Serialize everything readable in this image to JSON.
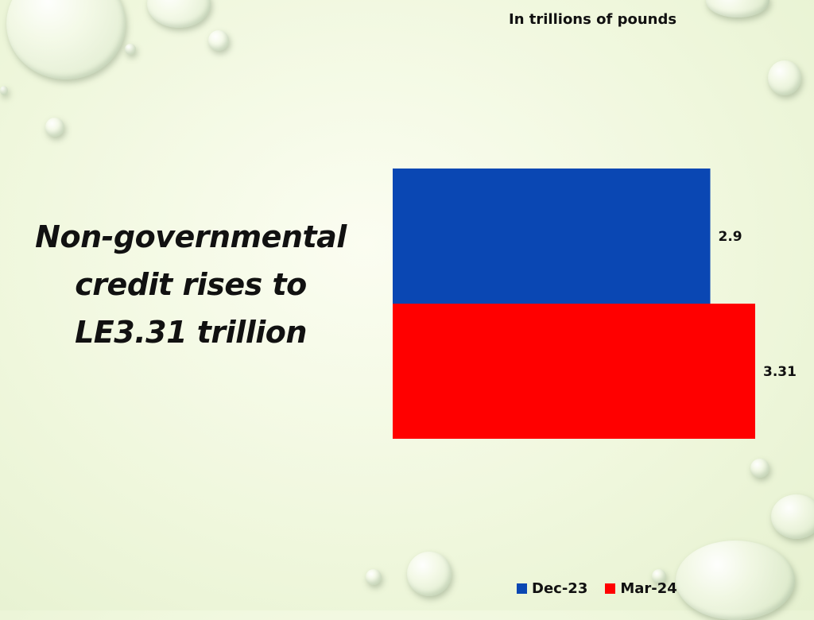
{
  "slide": {
    "title": "Non-governmental credit rises to LE3.31 trillion"
  },
  "chart_data": {
    "type": "bar",
    "orientation": "horizontal",
    "subtitle": "In trillions of pounds",
    "categories": [
      "Dec-23",
      "Mar-24"
    ],
    "values": [
      2.9,
      3.31
    ],
    "value_labels": [
      "2.9",
      "3.31"
    ],
    "colors": [
      "#0a47b3",
      "#ff0000"
    ],
    "xlim": [
      0,
      3.31
    ],
    "grid": false,
    "legend": {
      "position": "bottom-right",
      "entries": [
        {
          "label": "Dec-23",
          "color": "#0a47b3"
        },
        {
          "label": "Mar-24",
          "color": "#ff0000"
        }
      ]
    }
  }
}
